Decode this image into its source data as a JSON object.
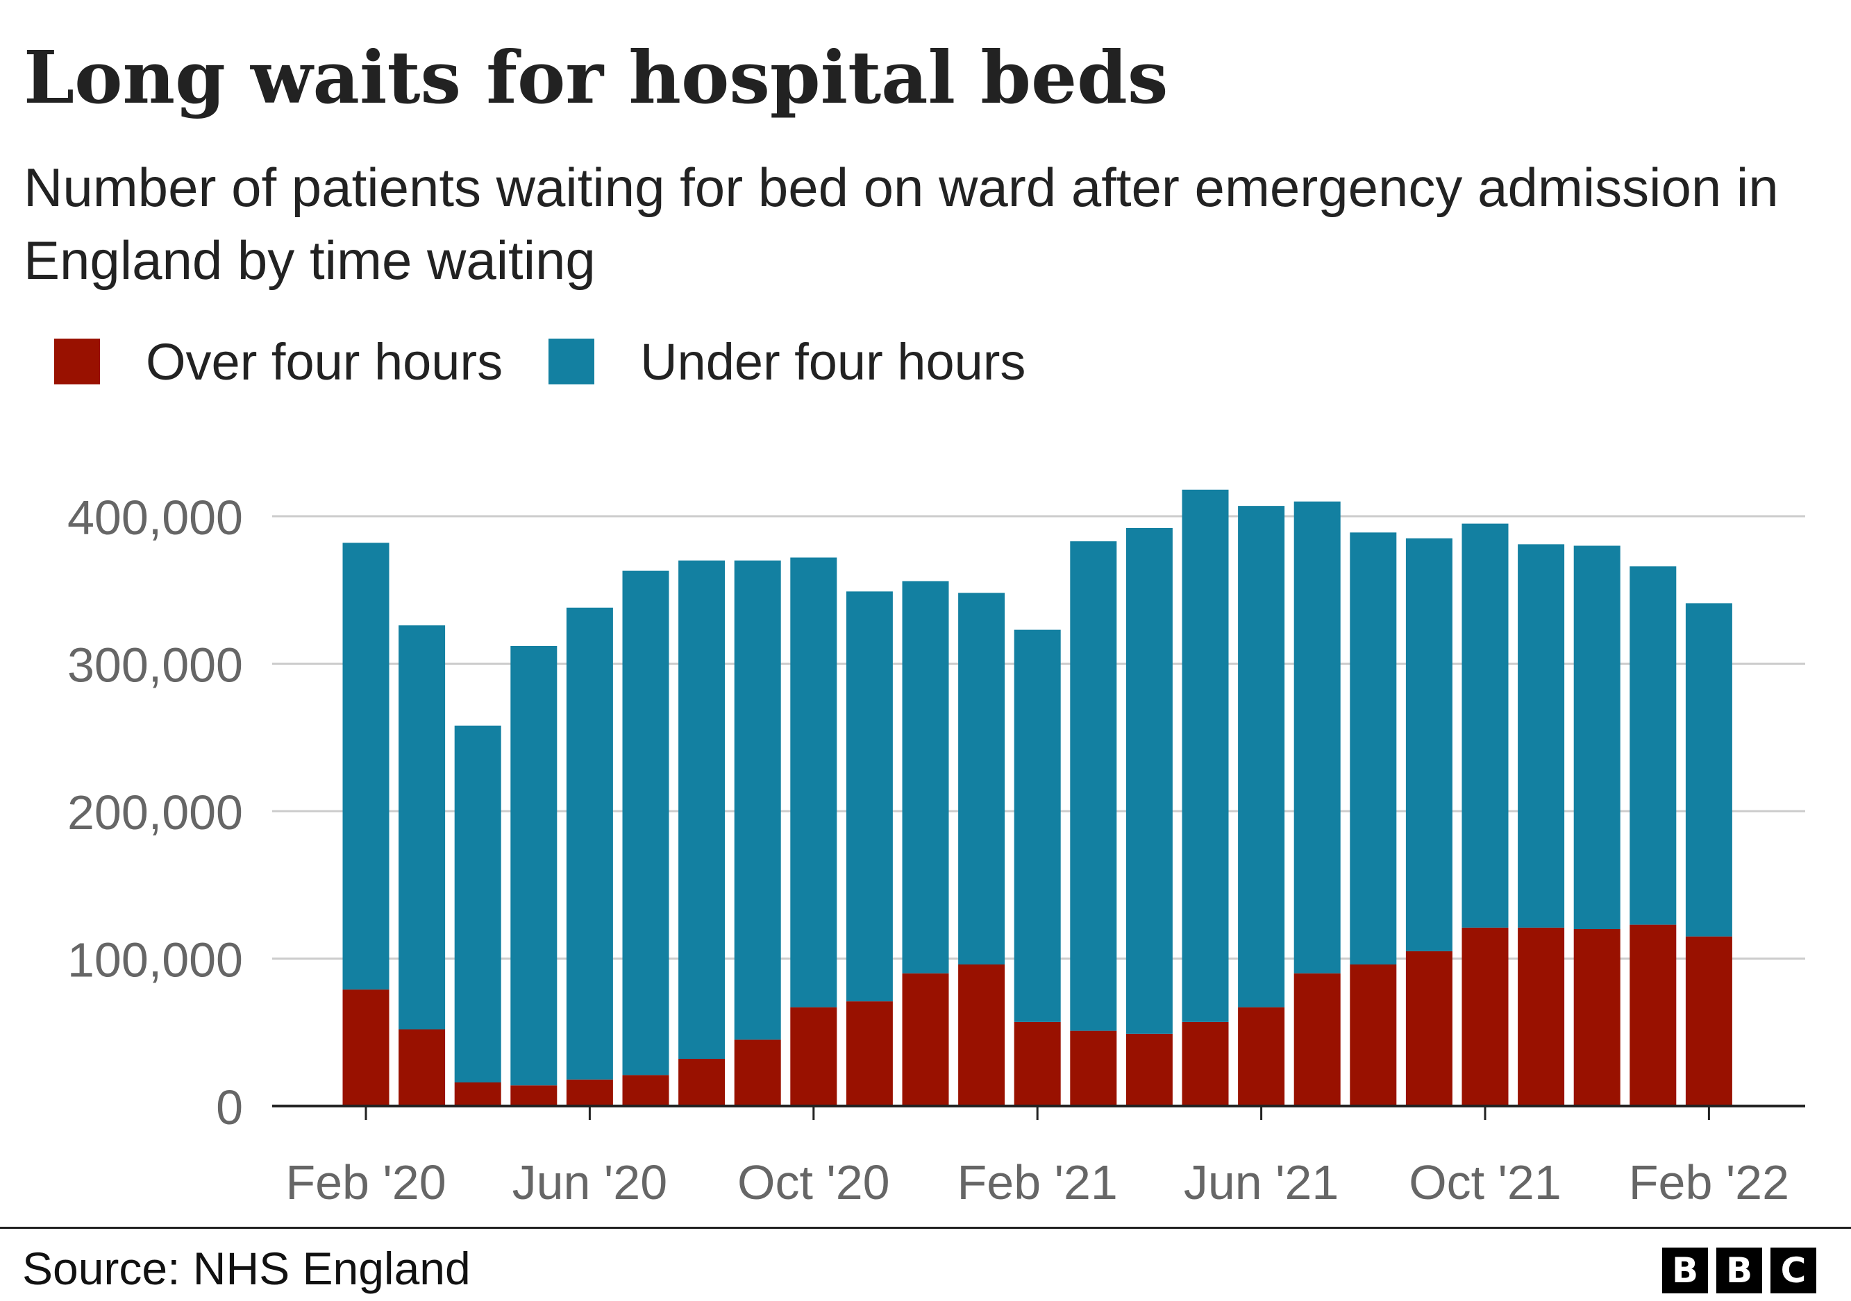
{
  "title": "Long waits for hospital beds",
  "subtitle": "Number of patients waiting for bed on ward after emergency admission in England by time waiting",
  "source": "Source: NHS England",
  "logo": [
    "B",
    "B",
    "C"
  ],
  "colors": {
    "over": "#991100",
    "under": "#1380a1",
    "grid": "#cccccc",
    "axis": "#222222",
    "tick_text": "#666666"
  },
  "chart_data": {
    "type": "bar",
    "stacked": true,
    "categories": [
      "Feb '20",
      "Mar '20",
      "Apr '20",
      "May '20",
      "Jun '20",
      "Jul '20",
      "Aug '20",
      "Sep '20",
      "Oct '20",
      "Nov '20",
      "Dec '20",
      "Jan '21",
      "Feb '21",
      "Mar '21",
      "Apr '21",
      "May '21",
      "Jun '21",
      "Jul '21",
      "Aug '21",
      "Sep '21",
      "Oct '21",
      "Nov '21",
      "Dec '21",
      "Jan '22",
      "Feb '22"
    ],
    "x_tick_labels": [
      "Feb '20",
      "Jun '20",
      "Oct '20",
      "Feb '21",
      "Jun '21",
      "Oct '21",
      "Feb '22"
    ],
    "x_tick_indices": [
      0,
      4,
      8,
      12,
      16,
      20,
      24
    ],
    "series": [
      {
        "name": "Over four hours",
        "color": "#991100",
        "values": [
          79000,
          52000,
          16000,
          14000,
          18000,
          21000,
          32000,
          45000,
          67000,
          71000,
          90000,
          96000,
          57000,
          51000,
          49000,
          57000,
          67000,
          90000,
          96000,
          105000,
          121000,
          121000,
          120000,
          123000,
          115000
        ]
      },
      {
        "name": "Under four hours",
        "color": "#1380a1",
        "values": [
          303000,
          274000,
          242000,
          298000,
          320000,
          342000,
          338000,
          325000,
          305000,
          278000,
          266000,
          252000,
          266000,
          332000,
          343000,
          361000,
          340000,
          320000,
          293000,
          280000,
          274000,
          260000,
          260000,
          243000,
          226000
        ]
      }
    ],
    "ylim": [
      0,
      400000
    ],
    "y_ticks": [
      0,
      100000,
      200000,
      300000,
      400000
    ],
    "y_tick_labels": [
      "0",
      "100,000",
      "200,000",
      "300,000",
      "400,000"
    ],
    "grid": true,
    "legend_position": "top-left"
  }
}
